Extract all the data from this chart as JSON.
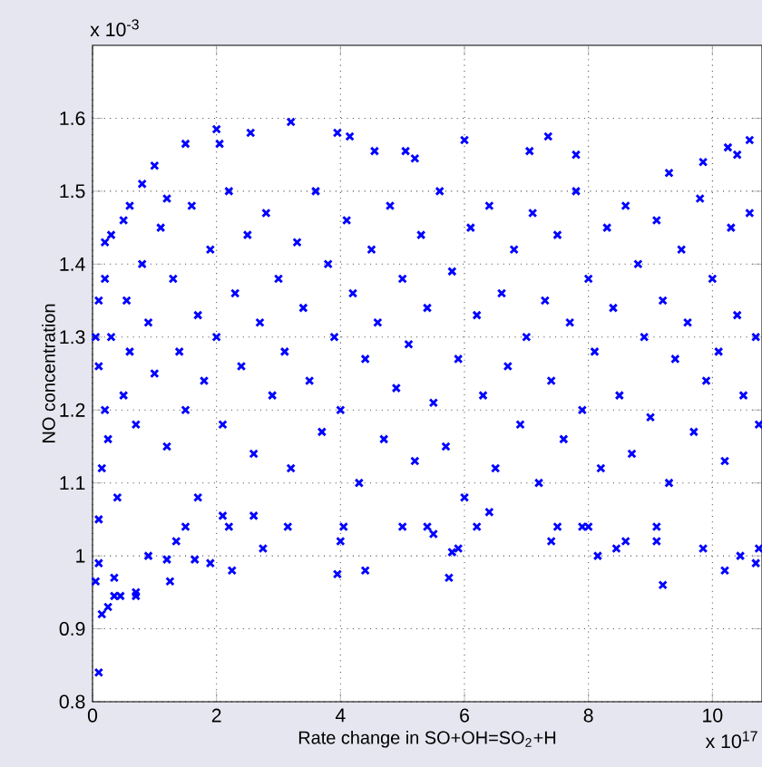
{
  "chart_data": {
    "type": "scatter",
    "xlabel": "Rate change in SO+OH=SO$_{2}$+H",
    "ylabel": "NO concentration",
    "annotations": [
      "x 10$^{-3}$",
      "x 10$^{17}$"
    ],
    "xlim": [
      0,
      10.8
    ],
    "ylim": [
      0.8,
      1.7
    ],
    "xticks": [
      0,
      2,
      4,
      6,
      8,
      10
    ],
    "yticks": [
      0.8,
      0.9,
      1,
      1.1,
      1.2,
      1.3,
      1.4,
      1.5,
      1.6
    ],
    "grid": true,
    "marker": "cross",
    "series": [
      {
        "color": "#0000ff",
        "x": [
          0.1,
          0.15,
          0.25,
          0.35,
          0.45,
          0.7,
          0.7,
          0.05,
          0.35,
          1.25,
          0.9,
          0.1,
          1.9,
          1.65,
          2.25,
          1.2,
          2.75,
          3.95,
          4.4,
          5.75,
          5.9,
          5.8,
          8.15,
          8.45,
          8.6,
          9.2,
          9.85,
          10.2,
          10.45,
          10.7,
          10.75,
          7.4,
          7.5,
          9.1,
          9.1,
          7.9,
          8.0,
          6.2,
          6.4,
          5.5,
          5.4,
          5.0,
          4.0,
          4.05,
          3.15,
          2.6,
          2.1,
          2.2,
          1.35,
          1.5,
          1.7,
          1.0,
          2.0,
          2.55,
          3.2,
          2.05,
          1.5,
          3.95,
          4.15,
          4.55,
          5.2,
          5.05,
          6.0,
          7.05,
          7.8,
          7.35,
          9.3,
          9.85,
          10.25,
          10.6,
          10.4,
          0.5,
          0.3,
          0.8,
          1.2,
          0.6,
          0.2,
          0.05,
          0.1,
          0.2,
          0.1,
          0.15,
          0.2,
          0.1,
          0.3,
          0.25,
          0.4,
          0.5,
          0.55,
          0.6,
          0.7,
          0.8,
          0.9,
          1.0,
          1.1,
          1.2,
          1.3,
          1.4,
          1.5,
          1.6,
          1.7,
          1.8,
          1.9,
          2.0,
          2.1,
          2.2,
          2.3,
          2.4,
          2.5,
          2.6,
          2.7,
          2.8,
          2.9,
          3.0,
          3.1,
          3.2,
          3.3,
          3.4,
          3.5,
          3.6,
          3.7,
          3.8,
          3.9,
          4.0,
          4.1,
          4.2,
          4.3,
          4.4,
          4.5,
          4.6,
          4.7,
          4.8,
          4.9,
          5.0,
          5.1,
          5.2,
          5.3,
          5.4,
          5.5,
          5.6,
          5.7,
          5.8,
          5.9,
          6.0,
          6.1,
          6.2,
          6.3,
          6.4,
          6.5,
          6.6,
          6.7,
          6.8,
          6.9,
          7.0,
          7.1,
          7.2,
          7.3,
          7.4,
          7.5,
          7.6,
          7.7,
          7.8,
          7.9,
          8.0,
          8.1,
          8.2,
          8.3,
          8.4,
          8.5,
          8.6,
          8.7,
          8.8,
          8.9,
          9.0,
          9.1,
          9.2,
          9.3,
          9.4,
          9.5,
          9.6,
          9.7,
          9.8,
          9.9,
          10.0,
          10.1,
          10.2,
          10.3,
          10.4,
          10.5,
          10.6,
          10.7,
          10.75
        ],
        "values": [
          0.84,
          0.92,
          0.93,
          0.945,
          0.945,
          0.945,
          0.95,
          0.965,
          0.97,
          0.965,
          1.0,
          0.99,
          0.99,
          0.995,
          0.98,
          0.995,
          1.01,
          0.975,
          0.98,
          0.97,
          1.01,
          1.005,
          1.0,
          1.01,
          1.02,
          0.96,
          1.01,
          0.98,
          1.0,
          0.99,
          1.01,
          1.02,
          1.04,
          1.02,
          1.04,
          1.04,
          1.04,
          1.04,
          1.06,
          1.03,
          1.04,
          1.04,
          1.02,
          1.04,
          1.04,
          1.055,
          1.055,
          1.04,
          1.02,
          1.04,
          1.08,
          1.535,
          1.585,
          1.58,
          1.595,
          1.565,
          1.565,
          1.58,
          1.575,
          1.555,
          1.545,
          1.555,
          1.57,
          1.555,
          1.55,
          1.575,
          1.525,
          1.54,
          1.56,
          1.57,
          1.55,
          1.46,
          1.44,
          1.51,
          1.49,
          1.48,
          1.43,
          1.3,
          1.35,
          1.38,
          1.05,
          1.12,
          1.2,
          1.26,
          1.3,
          1.16,
          1.08,
          1.22,
          1.35,
          1.28,
          1.18,
          1.4,
          1.32,
          1.25,
          1.45,
          1.15,
          1.38,
          1.28,
          1.2,
          1.48,
          1.33,
          1.24,
          1.42,
          1.3,
          1.18,
          1.5,
          1.36,
          1.26,
          1.44,
          1.14,
          1.32,
          1.47,
          1.22,
          1.38,
          1.28,
          1.12,
          1.43,
          1.34,
          1.24,
          1.5,
          1.17,
          1.4,
          1.3,
          1.2,
          1.46,
          1.36,
          1.1,
          1.27,
          1.42,
          1.32,
          1.16,
          1.48,
          1.23,
          1.38,
          1.29,
          1.13,
          1.44,
          1.34,
          1.21,
          1.5,
          1.15,
          1.39,
          1.27,
          1.08,
          1.45,
          1.33,
          1.22,
          1.48,
          1.12,
          1.36,
          1.26,
          1.42,
          1.18,
          1.3,
          1.47,
          1.1,
          1.35,
          1.24,
          1.44,
          1.16,
          1.32,
          1.5,
          1.2,
          1.38,
          1.28,
          1.12,
          1.45,
          1.34,
          1.22,
          1.48,
          1.14,
          1.4,
          1.3,
          1.19,
          1.46,
          1.35,
          1.1,
          1.27,
          1.42,
          1.32,
          1.17,
          1.49,
          1.24,
          1.38,
          1.28,
          1.13,
          1.45,
          1.33,
          1.22,
          1.47,
          1.3,
          1.18
        ]
      }
    ]
  }
}
